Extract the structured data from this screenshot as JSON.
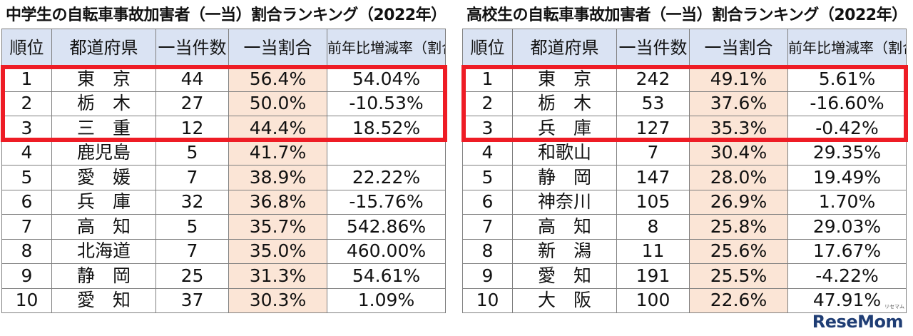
{
  "chart_data": [
    {
      "type": "table",
      "title": "中学生の自転車事故加害者（一当）割合ランキング（2022年）",
      "columns": [
        "順位",
        "都道府県",
        "一当件数",
        "一当割合",
        "前年比増減率（割合）"
      ],
      "rows": [
        [
          "1",
          "東　京",
          "44",
          "56.4%",
          "54.04%"
        ],
        [
          "2",
          "栃　木",
          "27",
          "50.0%",
          "-10.53%"
        ],
        [
          "3",
          "三　重",
          "12",
          "44.4%",
          "18.52%"
        ],
        [
          "4",
          "鹿児島",
          "5",
          "41.7%",
          ""
        ],
        [
          "5",
          "愛　媛",
          "7",
          "38.9%",
          "22.22%"
        ],
        [
          "6",
          "兵　庫",
          "32",
          "36.8%",
          "-15.76%"
        ],
        [
          "7",
          "高　知",
          "5",
          "35.7%",
          "542.86%"
        ],
        [
          "8",
          "北海道",
          "7",
          "35.0%",
          "460.00%"
        ],
        [
          "9",
          "静　岡",
          "25",
          "31.3%",
          "54.61%"
        ],
        [
          "10",
          "愛　知",
          "37",
          "30.3%",
          "1.09%"
        ]
      ],
      "highlight_color": "#ee1c25",
      "header_color": "#dae3f3",
      "ratio_cell_color": "#fbe5d6"
    },
    {
      "type": "table",
      "title": "高校生の自転車事故加害者（一当）割合ランキング（2022年）",
      "columns": [
        "順位",
        "都道府県",
        "一当件数",
        "一当割合",
        "前年比増減率（割合）"
      ],
      "rows": [
        [
          "1",
          "東　京",
          "242",
          "49.1%",
          "5.61%"
        ],
        [
          "2",
          "栃　木",
          "53",
          "37.6%",
          "-16.60%"
        ],
        [
          "3",
          "兵　庫",
          "127",
          "35.3%",
          "-0.42%"
        ],
        [
          "4",
          "和歌山",
          "7",
          "30.4%",
          "29.35%"
        ],
        [
          "5",
          "静　岡",
          "147",
          "28.0%",
          "19.49%"
        ],
        [
          "6",
          "神奈川",
          "105",
          "26.9%",
          "1.70%"
        ],
        [
          "7",
          "高　知",
          "8",
          "25.8%",
          "29.03%"
        ],
        [
          "8",
          "新　潟",
          "11",
          "25.6%",
          "17.67%"
        ],
        [
          "9",
          "愛　知",
          "191",
          "25.5%",
          "-4.22%"
        ],
        [
          "10",
          "大　阪",
          "100",
          "22.6%",
          "47.91%"
        ]
      ],
      "highlight_color": "#ee1c25",
      "header_color": "#dae3f3",
      "ratio_cell_color": "#fbe5d6"
    }
  ],
  "branding": {
    "logo": "ReseMom",
    "logo_sub": "リセマム"
  }
}
